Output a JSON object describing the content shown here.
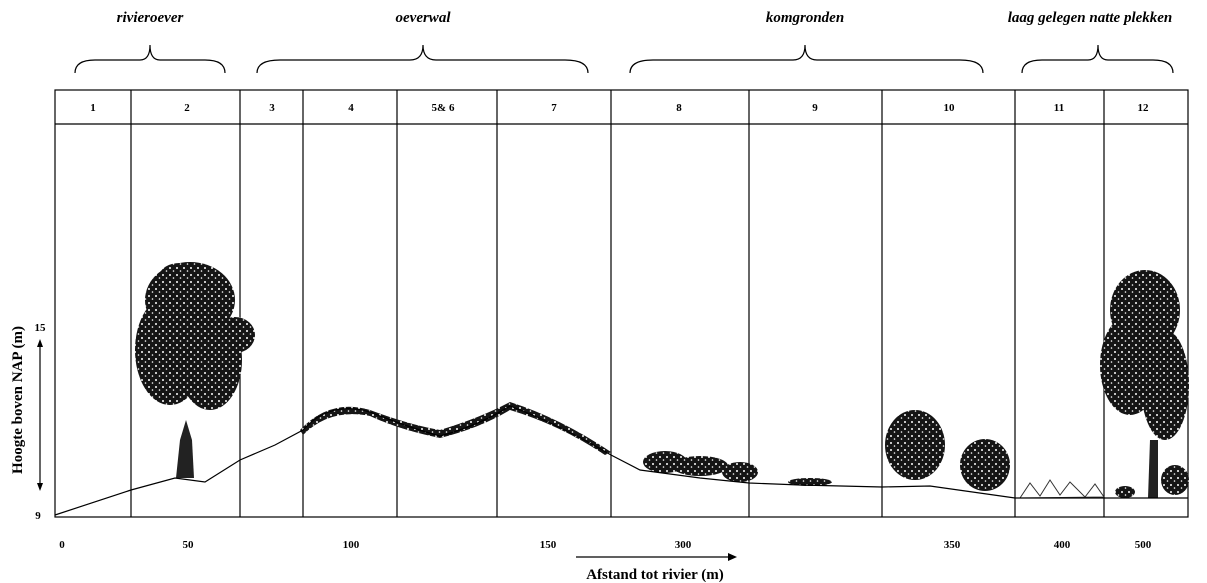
{
  "groups": [
    "rivieroever",
    "oeverwal",
    "komgronden",
    "laag gelegen natte plekken"
  ],
  "zones": [
    "1",
    "2",
    "3",
    "4",
    "5& 6",
    "7",
    "8",
    "9",
    "10",
    "11",
    "12"
  ],
  "y_axis": {
    "title": "Hoogte boven NAP (m)",
    "ticks": [
      "15",
      "9"
    ]
  },
  "x_axis": {
    "title": "Afstand tot rivier (m)",
    "ticks": [
      "0",
      "50",
      "100",
      "150",
      "300",
      "350",
      "400",
      "500"
    ]
  }
}
